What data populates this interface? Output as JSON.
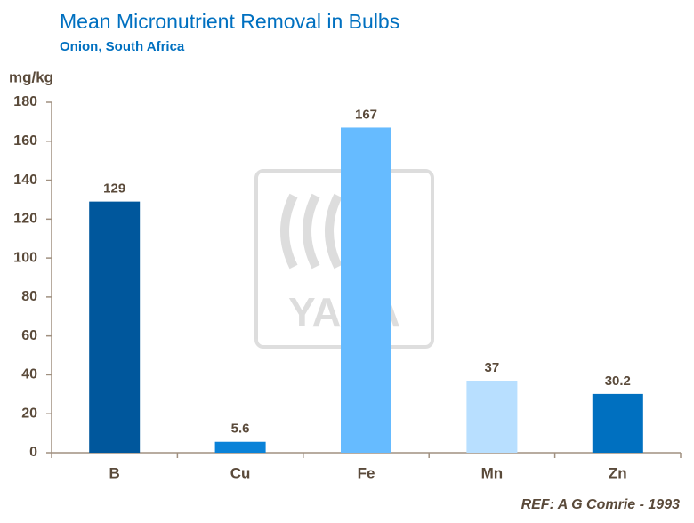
{
  "chart_data": {
    "type": "bar",
    "title": "Mean Micronutrient Removal  in Bulbs",
    "subtitle": "Onion,  South Africa",
    "y_label": "mg/kg",
    "categories": [
      "B",
      "Cu",
      "Fe",
      "Mn",
      "Zn"
    ],
    "values": [
      129,
      5.6,
      167,
      37,
      30.2
    ],
    "colors": [
      "#00579c",
      "#0a82d8",
      "#66bbff",
      "#b8dfff",
      "#0070c0"
    ],
    "ylim": [
      0,
      180
    ],
    "yticks": [
      0,
      20,
      40,
      60,
      80,
      100,
      120,
      140,
      160,
      180
    ],
    "grid": false,
    "watermark": "YARA",
    "reference": "REF: A G Comrie - 1993"
  }
}
